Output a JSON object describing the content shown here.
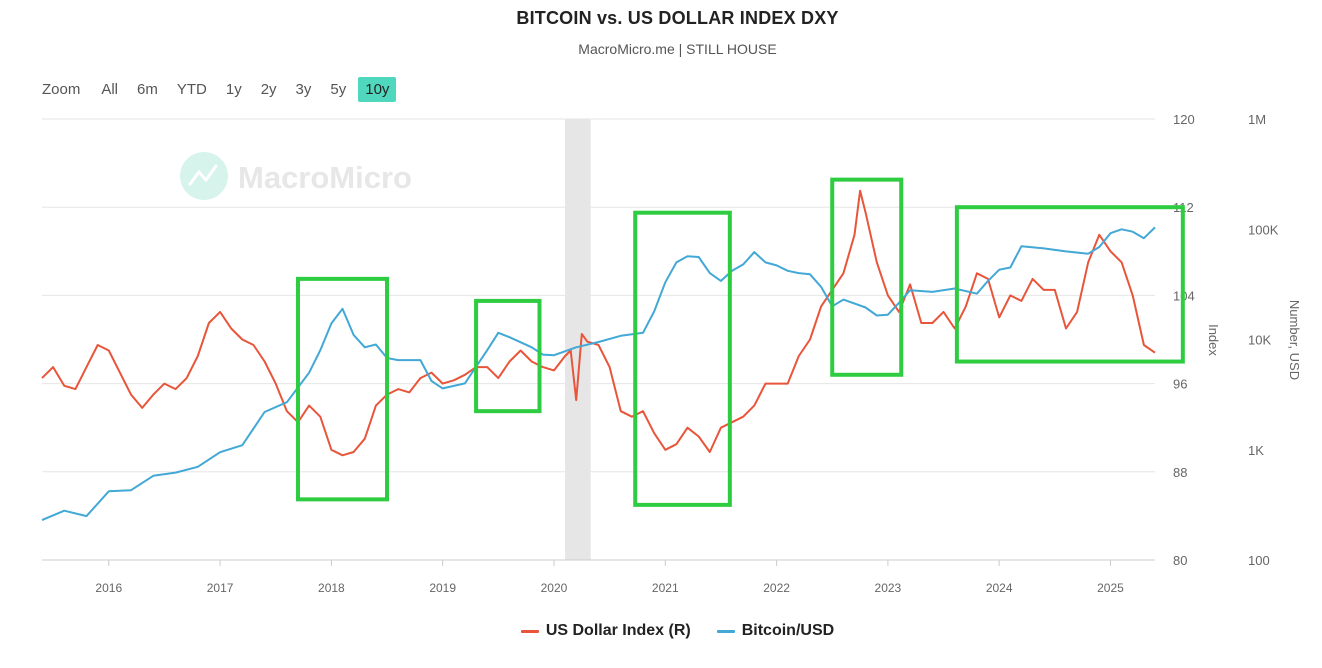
{
  "title": "BITCOIN vs. US DOLLAR INDEX DXY",
  "subtitle": "MacroMicro.me | STILL HOUSE",
  "watermark": "MacroMicro",
  "zoom": {
    "label": "Zoom",
    "buttons": [
      "All",
      "6m",
      "YTD",
      "1y",
      "2y",
      "3y",
      "5y",
      "10y"
    ],
    "active": "10y"
  },
  "legend": [
    {
      "label": "US Dollar Index (R)",
      "color": "#e8553a"
    },
    {
      "label": "Bitcoin/USD",
      "color": "#42a8d6"
    }
  ],
  "colors": {
    "dxy": "#e8553a",
    "btc": "#42a8d6",
    "highlight": "#2ecc40",
    "recession": "#e6e6e6",
    "grid": "#e6e6e6",
    "zoom_active": "#4fd8bd"
  },
  "chart_data": {
    "type": "line",
    "x_range": [
      2015.4,
      2025.4
    ],
    "x_ticks": [
      "2016",
      "2017",
      "2018",
      "2019",
      "2020",
      "2021",
      "2022",
      "2023",
      "2024",
      "2025"
    ],
    "axes": {
      "index": {
        "title": "Index",
        "min": 80,
        "max": 120,
        "ticks": [
          "80",
          "88",
          "96",
          "104",
          "112",
          "120"
        ]
      },
      "usd": {
        "title": "Number, USD",
        "scale": "log",
        "min": 100,
        "max": 1000000,
        "ticks": [
          "100",
          "1K",
          "10K",
          "100K",
          "1M"
        ]
      }
    },
    "recession_band": [
      2020.1,
      2020.33
    ],
    "highlight_boxes": [
      [
        2017.7,
        2018.5,
        85.5,
        105.5
      ],
      [
        2019.3,
        2019.87,
        93.5,
        103.5
      ],
      [
        2020.73,
        2021.58,
        85,
        111.5
      ],
      [
        2022.5,
        2023.12,
        96.8,
        114.5
      ],
      [
        2023.62,
        2025.65,
        98,
        112
      ]
    ],
    "series": [
      {
        "name": "US Dollar Index (R)",
        "axis": "index",
        "x": [
          2015.4,
          2015.5,
          2015.6,
          2015.7,
          2015.8,
          2015.9,
          2016.0,
          2016.1,
          2016.2,
          2016.3,
          2016.4,
          2016.5,
          2016.6,
          2016.7,
          2016.8,
          2016.9,
          2017.0,
          2017.1,
          2017.2,
          2017.3,
          2017.4,
          2017.5,
          2017.6,
          2017.7,
          2017.8,
          2017.9,
          2018.0,
          2018.1,
          2018.2,
          2018.3,
          2018.4,
          2018.5,
          2018.6,
          2018.7,
          2018.8,
          2018.9,
          2019.0,
          2019.1,
          2019.2,
          2019.3,
          2019.4,
          2019.5,
          2019.6,
          2019.7,
          2019.8,
          2019.9,
          2020.0,
          2020.1,
          2020.15,
          2020.2,
          2020.25,
          2020.3,
          2020.4,
          2020.5,
          2020.6,
          2020.7,
          2020.8,
          2020.9,
          2021.0,
          2021.1,
          2021.2,
          2021.3,
          2021.4,
          2021.5,
          2021.6,
          2021.7,
          2021.8,
          2021.9,
          2022.0,
          2022.1,
          2022.2,
          2022.3,
          2022.4,
          2022.5,
          2022.6,
          2022.7,
          2022.75,
          2022.8,
          2022.9,
          2023.0,
          2023.1,
          2023.2,
          2023.3,
          2023.4,
          2023.5,
          2023.6,
          2023.7,
          2023.8,
          2023.9,
          2024.0,
          2024.1,
          2024.2,
          2024.3,
          2024.4,
          2024.5,
          2024.6,
          2024.7,
          2024.8,
          2024.9,
          2025.0,
          2025.1,
          2025.2,
          2025.3,
          2025.4
        ],
        "values": [
          96.5,
          97.5,
          95.8,
          95.5,
          97.5,
          99.5,
          99.0,
          97.0,
          95.0,
          93.8,
          95.0,
          96.0,
          95.5,
          96.5,
          98.5,
          101.5,
          102.5,
          101.0,
          100.0,
          99.5,
          98.0,
          96.0,
          93.5,
          92.5,
          94.0,
          93.0,
          90.0,
          89.5,
          89.8,
          91.0,
          94.0,
          95.0,
          95.5,
          95.2,
          96.5,
          97.0,
          96.0,
          96.3,
          96.8,
          97.5,
          97.5,
          96.5,
          98.0,
          99.0,
          98.0,
          97.5,
          97.2,
          98.5,
          99.0,
          94.5,
          100.5,
          99.8,
          99.5,
          97.5,
          93.5,
          93.0,
          93.5,
          91.5,
          90.0,
          90.5,
          92.0,
          91.2,
          89.8,
          92.0,
          92.5,
          93.0,
          94.0,
          96.0,
          96.0,
          96.0,
          98.5,
          100.0,
          103.0,
          104.5,
          106.0,
          109.5,
          113.5,
          111.5,
          107.0,
          104.0,
          102.5,
          105.0,
          101.5,
          101.5,
          102.5,
          101.0,
          103.0,
          106.0,
          105.5,
          102.0,
          104.0,
          103.5,
          105.5,
          104.5,
          104.5,
          101.0,
          102.5,
          107.0,
          109.5,
          108.0,
          107.0,
          104.0,
          99.5,
          98.8
        ]
      },
      {
        "name": "Bitcoin/USD",
        "axis": "usd",
        "x": [
          2015.4,
          2015.6,
          2015.8,
          2016.0,
          2016.2,
          2016.4,
          2016.6,
          2016.8,
          2017.0,
          2017.2,
          2017.4,
          2017.6,
          2017.8,
          2017.9,
          2018.0,
          2018.1,
          2018.2,
          2018.3,
          2018.4,
          2018.5,
          2018.6,
          2018.8,
          2018.9,
          2019.0,
          2019.2,
          2019.4,
          2019.5,
          2019.6,
          2019.8,
          2019.9,
          2020.0,
          2020.2,
          2020.4,
          2020.6,
          2020.8,
          2020.9,
          2021.0,
          2021.1,
          2021.2,
          2021.3,
          2021.4,
          2021.5,
          2021.6,
          2021.7,
          2021.8,
          2021.9,
          2022.0,
          2022.1,
          2022.2,
          2022.3,
          2022.4,
          2022.5,
          2022.6,
          2022.8,
          2022.9,
          2023.0,
          2023.1,
          2023.2,
          2023.4,
          2023.6,
          2023.8,
          2023.9,
          2024.0,
          2024.1,
          2024.2,
          2024.4,
          2024.6,
          2024.8,
          2024.9,
          2025.0,
          2025.1,
          2025.2,
          2025.3,
          2025.4
        ],
        "values": [
          230,
          280,
          250,
          420,
          430,
          580,
          620,
          700,
          950,
          1100,
          2200,
          2700,
          5000,
          8000,
          14000,
          19000,
          11000,
          8500,
          9000,
          6800,
          6500,
          6500,
          4200,
          3600,
          4000,
          8000,
          11500,
          10500,
          8500,
          7300,
          7200,
          8500,
          9500,
          10800,
          11500,
          18000,
          33000,
          50000,
          57000,
          56000,
          40000,
          34000,
          42000,
          48000,
          62000,
          50000,
          47000,
          42000,
          40000,
          39000,
          30000,
          20000,
          23000,
          19500,
          16500,
          16800,
          21500,
          28000,
          27000,
          29000,
          26000,
          34000,
          43000,
          45000,
          70000,
          67000,
          63000,
          60000,
          69000,
          92000,
          100000,
          95000,
          83000,
          104000
        ]
      }
    ]
  }
}
